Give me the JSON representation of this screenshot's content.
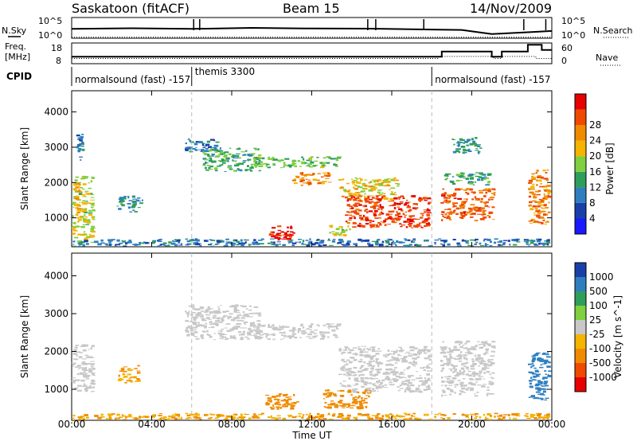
{
  "header": {
    "site": "Saskatoon (fitACF)",
    "beam": "Beam 15",
    "date": "14/Nov/2009"
  },
  "noise_panel": {
    "left_label": "N.Sky",
    "right_label": "N.Search",
    "left_ticks": [
      "10^5",
      "10^0"
    ],
    "right_ticks": [
      "10^5",
      "10^0"
    ]
  },
  "freq_panel": {
    "left_label_1": "Freq.",
    "left_label_2": "[MHz]",
    "right_label": "Nave",
    "left_ticks": [
      "18",
      "8"
    ],
    "right_ticks": [
      "60",
      "0"
    ]
  },
  "cpid": {
    "label": "CPID",
    "segments": [
      {
        "text": "normalsound (fast) -157",
        "start_hour": 0.0
      },
      {
        "text": "themis 3300",
        "start_hour": 6.0
      },
      {
        "text": "normalsound (fast) -157",
        "start_hour": 18.0
      }
    ]
  },
  "colors": {
    "power_scale": [
      "#1a1aff",
      "#1a3fa8",
      "#2f7fc0",
      "#2e9e5a",
      "#7fcf3f",
      "#f4b400",
      "#f08a00",
      "#f04a00",
      "#e60000"
    ],
    "velocity_scale": [
      "#1a3fa8",
      "#2f7fc0",
      "#2e9e5a",
      "#7fcf3f",
      "#c8c8c8",
      "#f4b400",
      "#f08a00",
      "#f04a00",
      "#e60000"
    ]
  },
  "chart_data": [
    {
      "type": "heatmap",
      "name": "power",
      "xlabel": "",
      "ylabel": "Slant Range [km]",
      "xlim": [
        0,
        24
      ],
      "ylim": [
        180,
        4600
      ],
      "x_ticks": [
        0,
        4,
        8,
        12,
        16,
        20,
        24
      ],
      "x_ticklabels": [
        "00:00",
        "04:00",
        "08:00",
        "12:00",
        "16:00",
        "20:00",
        "00:00"
      ],
      "y_ticks": [
        1000,
        2000,
        3000,
        4000
      ],
      "y_ticklabels": [
        "1000",
        "2000",
        "3000",
        "4000"
      ],
      "colorbar_label": "Power [dB]",
      "colorbar_ticks": [
        "4",
        "8",
        "12",
        "16",
        "20",
        "24",
        "28"
      ],
      "colorbar_range": [
        0,
        30
      ],
      "regions": [
        {
          "t0": 0.0,
          "t1": 1.2,
          "r0": 250,
          "r1": 2200,
          "level": 16
        },
        {
          "t0": 0.1,
          "t1": 0.5,
          "r0": 1000,
          "r1": 2000,
          "level": 20
        },
        {
          "t0": 0.2,
          "t1": 0.7,
          "r0": 2600,
          "r1": 3400,
          "level": 8
        },
        {
          "t0": 2.2,
          "t1": 3.6,
          "r0": 1150,
          "r1": 1650,
          "level": 10
        },
        {
          "t0": 5.6,
          "t1": 7.5,
          "r0": 2850,
          "r1": 3250,
          "level": 8
        },
        {
          "t0": 6.5,
          "t1": 9.5,
          "r0": 2300,
          "r1": 3000,
          "level": 12
        },
        {
          "t0": 9.0,
          "t1": 13.5,
          "r0": 2400,
          "r1": 2750,
          "level": 14
        },
        {
          "t0": 11.0,
          "t1": 13.0,
          "r0": 1900,
          "r1": 2300,
          "level": 22
        },
        {
          "t0": 13.3,
          "t1": 16.4,
          "r0": 1500,
          "r1": 2150,
          "level": 18
        },
        {
          "t0": 13.6,
          "t1": 18.0,
          "r0": 700,
          "r1": 1650,
          "level": 26
        },
        {
          "t0": 9.8,
          "t1": 11.2,
          "r0": 350,
          "r1": 800,
          "level": 28
        },
        {
          "t0": 12.8,
          "t1": 14.0,
          "r0": 450,
          "r1": 800,
          "level": 16
        },
        {
          "t0": 18.4,
          "t1": 21.2,
          "r0": 900,
          "r1": 1850,
          "level": 24
        },
        {
          "t0": 18.6,
          "t1": 21.0,
          "r0": 1900,
          "r1": 2300,
          "level": 12
        },
        {
          "t0": 19.0,
          "t1": 20.6,
          "r0": 2800,
          "r1": 3300,
          "level": 10
        },
        {
          "t0": 22.8,
          "t1": 24.0,
          "r0": 800,
          "r1": 2400,
          "level": 22
        },
        {
          "t0": 0.0,
          "t1": 24.0,
          "r0": 180,
          "r1": 420,
          "level": 8
        }
      ]
    },
    {
      "type": "heatmap",
      "name": "velocity",
      "xlabel": "Time UT",
      "ylabel": "Slant Range [km]",
      "xlim": [
        0,
        24
      ],
      "ylim": [
        180,
        4600
      ],
      "x_ticks": [
        0,
        4,
        8,
        12,
        16,
        20,
        24
      ],
      "x_ticklabels": [
        "00:00",
        "04:00",
        "08:00",
        "12:00",
        "16:00",
        "20:00",
        "00:00"
      ],
      "y_ticks": [
        1000,
        2000,
        3000,
        4000
      ],
      "y_ticklabels": [
        "1000",
        "2000",
        "3000",
        "4000"
      ],
      "colorbar_label": "Velocity [m s^-1]",
      "colorbar_ticks": [
        "1000",
        "500",
        "100",
        "25",
        "-25",
        "-100",
        "-500",
        "-1000"
      ],
      "regions": [
        {
          "t0": 0.0,
          "t1": 1.2,
          "r0": 900,
          "r1": 2200,
          "level": 0
        },
        {
          "t0": 2.3,
          "t1": 3.5,
          "r0": 1150,
          "r1": 1650,
          "level": -100
        },
        {
          "t0": 5.6,
          "t1": 9.5,
          "r0": 2300,
          "r1": 3250,
          "level": 0
        },
        {
          "t0": 9.0,
          "t1": 13.5,
          "r0": 2300,
          "r1": 2750,
          "level": 0
        },
        {
          "t0": 13.3,
          "t1": 18.0,
          "r0": 900,
          "r1": 2150,
          "level": 0
        },
        {
          "t0": 9.6,
          "t1": 11.4,
          "r0": 450,
          "r1": 900,
          "level": -200
        },
        {
          "t0": 12.5,
          "t1": 15.0,
          "r0": 450,
          "r1": 1000,
          "level": -150
        },
        {
          "t0": 18.4,
          "t1": 21.2,
          "r0": 800,
          "r1": 2300,
          "level": 0
        },
        {
          "t0": 22.8,
          "t1": 24.0,
          "r0": 700,
          "r1": 2000,
          "level": 300
        },
        {
          "t0": 0.0,
          "t1": 24.0,
          "r0": 180,
          "r1": 380,
          "level": -100
        }
      ]
    },
    {
      "type": "line",
      "name": "noise",
      "series": [
        {
          "name": "N.Sky",
          "x": [
            0,
            3,
            6,
            9,
            12,
            15,
            18,
            19.5,
            21,
            22,
            23,
            24
          ],
          "y": [
            0.45,
            0.48,
            0.45,
            0.5,
            0.47,
            0.46,
            0.42,
            0.4,
            0.2,
            0.25,
            0.3,
            0.35
          ]
        },
        {
          "name": "N.Search",
          "x": [
            0,
            6,
            12,
            18,
            20,
            21,
            22,
            24
          ],
          "y": [
            0.05,
            0.05,
            0.05,
            0.05,
            0.05,
            0.05,
            0.05,
            0.05
          ]
        }
      ]
    },
    {
      "type": "line",
      "name": "freq_nave",
      "series": [
        {
          "name": "Freq.",
          "x": [
            0,
            18.3,
            18.3,
            21.1,
            21.1,
            21.5,
            21.5,
            23.2,
            23.2,
            24
          ],
          "y": [
            10.5,
            10.5,
            11.5,
            11.5,
            10.5,
            10.5,
            11.5,
            11.5,
            10.5,
            10.5
          ]
        },
        {
          "name": "Nave",
          "x": [
            0,
            18.5,
            18.5,
            21.0,
            21.0,
            21.5,
            21.5,
            22.8,
            22.8,
            23.5,
            23.5,
            24
          ],
          "y": [
            20,
            20,
            35,
            35,
            20,
            20,
            35,
            35,
            55,
            55,
            40,
            40
          ]
        }
      ]
    }
  ]
}
